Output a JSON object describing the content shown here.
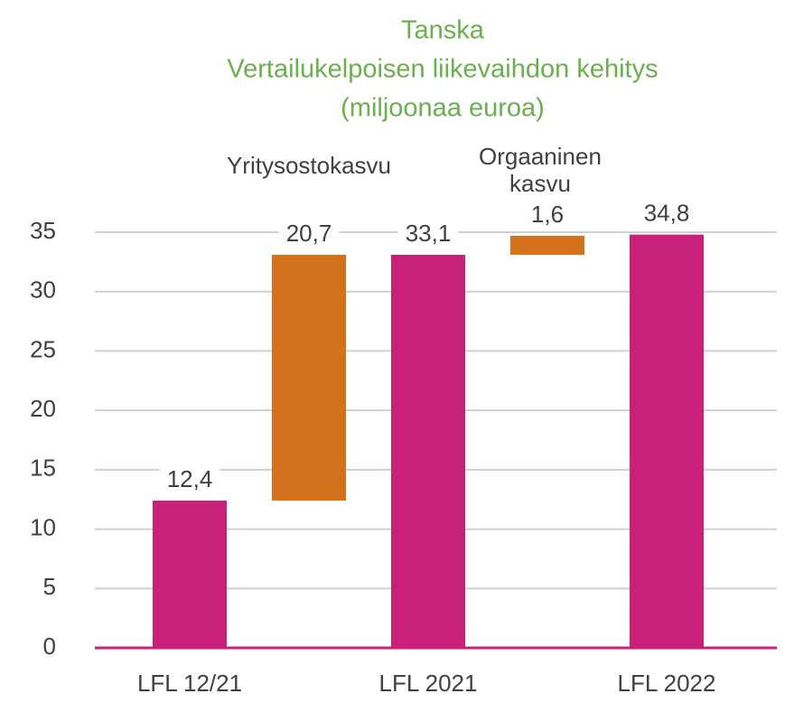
{
  "chart_data": {
    "type": "waterfall",
    "title": [
      "Tanska",
      "Vertailukelpoisen liikevaihdon kehitys",
      "(miljoonaa euroa)"
    ],
    "categories": [
      "LFL 12/21",
      null,
      "LFL 2021",
      null,
      "LFL 2022"
    ],
    "values": [
      12.4,
      20.7,
      33.1,
      1.6,
      34.8
    ],
    "value_labels": [
      "12,4",
      "20,7",
      "33,1",
      "1,6",
      "34,8"
    ],
    "measure": [
      "absolute",
      "relative",
      "absolute",
      "relative",
      "absolute"
    ],
    "colors": {
      "absolute": "#c9207a",
      "relative": "#d4711c"
    },
    "annotations": [
      {
        "index": 1,
        "lines": [
          "Yritysostokasvu"
        ]
      },
      {
        "index": 3,
        "lines": [
          "Orgaaninen",
          "kasvu"
        ]
      }
    ],
    "ylim": [
      0,
      35
    ],
    "yticks": [
      0,
      5,
      10,
      15,
      20,
      25,
      30,
      35
    ],
    "grid": true
  }
}
